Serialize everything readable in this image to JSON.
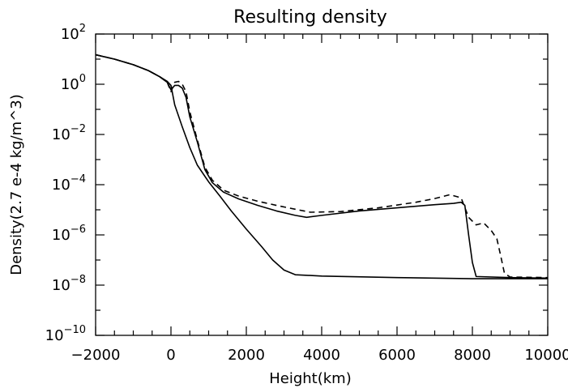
{
  "chart_data": {
    "type": "line",
    "title": "Resulting density",
    "xlabel": "Height(km)",
    "ylabel": "Density(2.7 e-4 kg/m^3)",
    "xlim": [
      -2000,
      10000
    ],
    "ylim": [
      1e-10,
      100
    ],
    "yscale": "log",
    "grid": false,
    "x_ticks": [
      -2000,
      0,
      2000,
      4000,
      6000,
      8000,
      10000
    ],
    "x_tick_labels": [
      "−2000",
      "0",
      "2000",
      "4000",
      "6000",
      "8000",
      "10000"
    ],
    "y_tick_exponents": [
      -10,
      -8,
      -6,
      -4,
      -2,
      0,
      2
    ],
    "series": [
      {
        "style": "solid",
        "color": "#000000",
        "points": [
          [
            -2000,
            15
          ],
          [
            -1500,
            10
          ],
          [
            -1000,
            6
          ],
          [
            -600,
            3.5
          ],
          [
            -300,
            2
          ],
          [
            -100,
            1.3
          ],
          [
            0,
            0.9
          ],
          [
            100,
            0.15
          ],
          [
            300,
            0.02
          ],
          [
            500,
            0.003
          ],
          [
            700,
            0.0006
          ],
          [
            1000,
            0.00013
          ],
          [
            1300,
            3.5e-05
          ],
          [
            1600,
            9e-06
          ],
          [
            2000,
            1.7e-06
          ],
          [
            2400,
            3.5e-07
          ],
          [
            2700,
            1e-07
          ],
          [
            3000,
            4e-08
          ],
          [
            3300,
            2.6e-08
          ],
          [
            4000,
            2.3e-08
          ],
          [
            6000,
            2e-08
          ],
          [
            8000,
            1.8e-08
          ],
          [
            10000,
            1.8e-08
          ]
        ]
      },
      {
        "style": "solid",
        "color": "#000000",
        "points": [
          [
            -2000,
            15
          ],
          [
            -1500,
            10
          ],
          [
            -1000,
            6
          ],
          [
            -600,
            3.5
          ],
          [
            -300,
            2
          ],
          [
            -100,
            1.2
          ],
          [
            0,
            0.6
          ],
          [
            100,
            0.9
          ],
          [
            200,
            0.9
          ],
          [
            300,
            0.7
          ],
          [
            400,
            0.3
          ],
          [
            500,
            0.05
          ],
          [
            700,
            0.005
          ],
          [
            900,
            0.0004
          ],
          [
            1100,
            0.00012
          ],
          [
            1400,
            5e-05
          ],
          [
            1800,
            2.7e-05
          ],
          [
            2300,
            1.5e-05
          ],
          [
            2800,
            9e-06
          ],
          [
            3300,
            6e-06
          ],
          [
            3600,
            5e-06
          ],
          [
            4000,
            6e-06
          ],
          [
            5000,
            9e-06
          ],
          [
            6000,
            1.2e-05
          ],
          [
            7000,
            1.6e-05
          ],
          [
            7500,
            1.8e-05
          ],
          [
            7700,
            2e-05
          ],
          [
            7800,
            1.5e-05
          ],
          [
            7900,
            1e-06
          ],
          [
            8000,
            8e-08
          ],
          [
            8100,
            2.2e-08
          ],
          [
            9000,
            2e-08
          ],
          [
            10000,
            1.9e-08
          ]
        ]
      },
      {
        "style": "dashed",
        "color": "#000000",
        "points": [
          [
            -2000,
            15
          ],
          [
            -1500,
            10
          ],
          [
            -1000,
            6
          ],
          [
            -600,
            3.5
          ],
          [
            -300,
            2
          ],
          [
            -100,
            1.2
          ],
          [
            0,
            0.5
          ],
          [
            100,
            1.2
          ],
          [
            200,
            1.3
          ],
          [
            300,
            1.0
          ],
          [
            400,
            0.5
          ],
          [
            500,
            0.08
          ],
          [
            700,
            0.006
          ],
          [
            900,
            0.0005
          ],
          [
            1100,
            0.00015
          ],
          [
            1400,
            6e-05
          ],
          [
            1800,
            3.5e-05
          ],
          [
            2300,
            2.2e-05
          ],
          [
            2800,
            1.5e-05
          ],
          [
            3300,
            1.05e-05
          ],
          [
            3700,
            8e-06
          ],
          [
            4500,
            8.5e-06
          ],
          [
            5500,
            1.2e-05
          ],
          [
            6500,
            2e-05
          ],
          [
            7000,
            2.8e-05
          ],
          [
            7400,
            4e-05
          ],
          [
            7700,
            3e-05
          ],
          [
            7900,
            5e-06
          ],
          [
            8100,
            2.5e-06
          ],
          [
            8300,
            3e-06
          ],
          [
            8500,
            1.5e-06
          ],
          [
            8650,
            7e-07
          ],
          [
            8750,
            1.5e-07
          ],
          [
            8850,
            3e-08
          ],
          [
            9000,
            2.1e-08
          ],
          [
            10000,
            2e-08
          ]
        ]
      }
    ]
  }
}
